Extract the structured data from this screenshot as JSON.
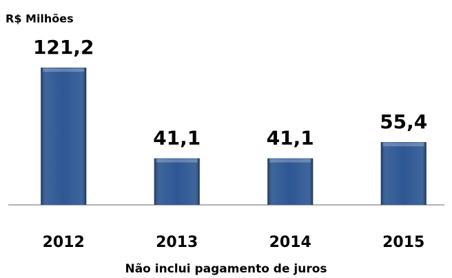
{
  "chart_data": {
    "type": "bar",
    "title": "R$ Milhões",
    "categories": [
      "2012",
      "2013",
      "2014",
      "2015"
    ],
    "values": [
      121.2,
      41.1,
      41.1,
      55.4
    ],
    "value_labels": [
      "121,2",
      "41,1",
      "41,1",
      "55,4"
    ],
    "color": "#234f8e",
    "note": "Não inclui pagamento de juros"
  }
}
